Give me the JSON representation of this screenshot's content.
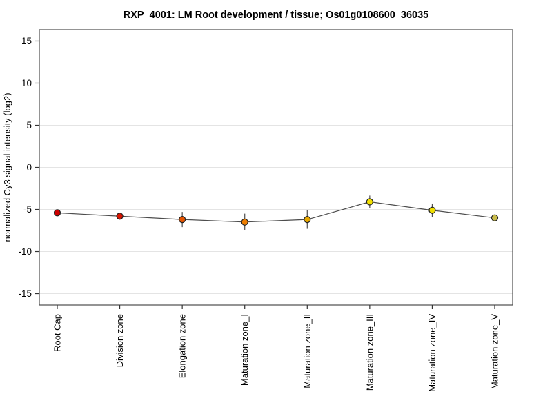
{
  "chart_data": {
    "type": "line",
    "title": "RXP_4001: LM Root development / tissue; Os01g0108600_36035",
    "ylabel": "normalized Cy3 signal intensity (log2)",
    "xlabel": "",
    "categories": [
      "Root Cap",
      "Division zone",
      "Elongation zone",
      "Maturation zone_I",
      "Maturation zone_II",
      "Maturation zone_III",
      "Maturation zone_IV",
      "Maturation zone_V"
    ],
    "series": [
      {
        "name": "normalized Cy3 signal intensity",
        "values": [
          -5.4,
          -5.8,
          -6.2,
          -6.5,
          -6.2,
          -4.1,
          -5.1,
          -6.0
        ],
        "errors": [
          0.35,
          0.4,
          0.9,
          1.0,
          1.1,
          0.75,
          0.8,
          0.3
        ],
        "point_colors": [
          "#cc0000",
          "#d81400",
          "#e55400",
          "#ee7e00",
          "#e8a800",
          "#f2e000",
          "#eede00",
          "#c9bc4a"
        ]
      }
    ],
    "ylim": [
      -16.35,
      16.35
    ],
    "yticks": [
      15,
      10,
      5,
      0,
      -5,
      -10,
      -15
    ],
    "grid": true,
    "legend": false
  },
  "style": {
    "background": "#ffffff",
    "frame_color": "#4d4d4d",
    "grid_color": "#e4e4e4",
    "line_color": "#4d4d4d",
    "error_bar_color": "#4d4d4d",
    "point_stroke": "#222222",
    "tick_color": "#333333",
    "text_color": "#000000"
  }
}
